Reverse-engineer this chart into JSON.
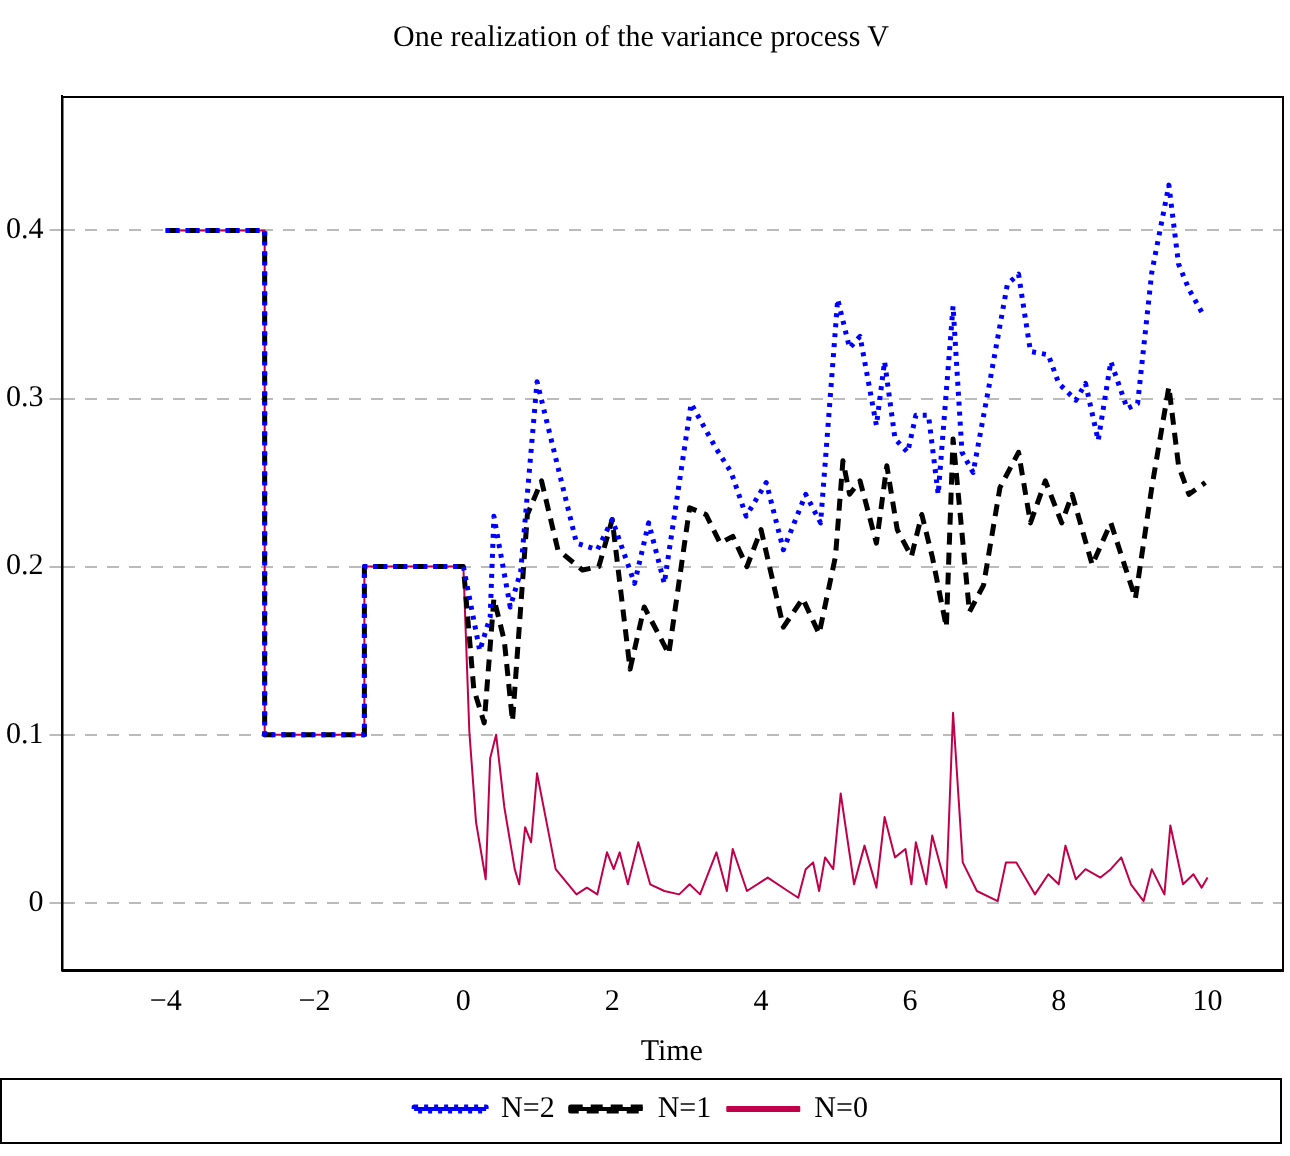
{
  "chart_data": {
    "type": "line",
    "title": "One realization of the variance process V",
    "xlabel": "Time",
    "xlim": [
      -5.4,
      11
    ],
    "xticks": [
      -4,
      -2,
      0,
      2,
      4,
      6,
      8,
      10
    ],
    "ylim": [
      -0.04,
      0.48
    ],
    "yticks": [
      0,
      0.1,
      0.2,
      0.3,
      0.4
    ],
    "grid": "y",
    "legend": "bottom",
    "marker": "none",
    "series": [
      {
        "name": "N=2",
        "color": "#0000ff",
        "line_style": "dotted",
        "x": [
          -4,
          -2.67,
          -2.67,
          -1.33,
          -1.33,
          0,
          0.22,
          0.36,
          0.41,
          0.63,
          0.77,
          0.99,
          1.52,
          1.8,
          2.0,
          2.3,
          2.49,
          2.7,
          3.06,
          3.4,
          3.6,
          3.8,
          4.07,
          4.3,
          4.6,
          4.8,
          5.03,
          5.19,
          5.33,
          5.55,
          5.66,
          5.8,
          5.97,
          6.08,
          6.25,
          6.38,
          6.58,
          6.7,
          6.85,
          7.07,
          7.31,
          7.46,
          7.62,
          7.86,
          8.0,
          8.23,
          8.36,
          8.53,
          8.7,
          8.92,
          9.06,
          9.25,
          9.48,
          9.61,
          9.75,
          9.94
        ],
        "values": [
          0.4,
          0.4,
          0.1,
          0.1,
          0.2,
          0.2,
          0.15,
          0.17,
          0.23,
          0.176,
          0.197,
          0.31,
          0.214,
          0.21,
          0.228,
          0.19,
          0.226,
          0.19,
          0.297,
          0.27,
          0.256,
          0.23,
          0.25,
          0.21,
          0.243,
          0.226,
          0.359,
          0.33,
          0.337,
          0.284,
          0.322,
          0.276,
          0.268,
          0.29,
          0.29,
          0.243,
          0.355,
          0.268,
          0.256,
          0.309,
          0.368,
          0.374,
          0.328,
          0.326,
          0.309,
          0.299,
          0.309,
          0.275,
          0.322,
          0.294,
          0.297,
          0.375,
          0.427,
          0.38,
          0.365,
          0.35
        ]
      },
      {
        "name": "N=1",
        "color": "#000000",
        "line_style": "dashed",
        "x": [
          -4,
          -2.67,
          -2.67,
          -1.33,
          -1.33,
          0,
          0.14,
          0.28,
          0.41,
          0.55,
          0.66,
          0.86,
          1.05,
          1.27,
          1.6,
          1.82,
          2.0,
          2.24,
          2.43,
          2.62,
          2.76,
          3.04,
          3.26,
          3.45,
          3.62,
          3.81,
          4.0,
          4.3,
          4.56,
          4.78,
          5.0,
          5.1,
          5.19,
          5.33,
          5.55,
          5.69,
          5.83,
          6.02,
          6.16,
          6.3,
          6.49,
          6.58,
          6.8,
          6.99,
          7.21,
          7.46,
          7.62,
          7.82,
          8.04,
          8.18,
          8.45,
          8.7,
          9.03,
          9.25,
          9.48,
          9.61,
          9.75,
          9.97
        ],
        "values": [
          0.4,
          0.4,
          0.1,
          0.1,
          0.2,
          0.2,
          0.127,
          0.107,
          0.181,
          0.156,
          0.108,
          0.231,
          0.251,
          0.21,
          0.198,
          0.2,
          0.228,
          0.139,
          0.176,
          0.16,
          0.148,
          0.235,
          0.231,
          0.214,
          0.218,
          0.2,
          0.222,
          0.164,
          0.181,
          0.16,
          0.206,
          0.263,
          0.243,
          0.251,
          0.214,
          0.26,
          0.222,
          0.206,
          0.231,
          0.206,
          0.164,
          0.276,
          0.173,
          0.189,
          0.247,
          0.268,
          0.226,
          0.251,
          0.226,
          0.243,
          0.201,
          0.226,
          0.181,
          0.247,
          0.307,
          0.26,
          0.243,
          0.25
        ]
      },
      {
        "name": "N=0",
        "color": "#c0004a",
        "line_style": "solid",
        "x": [
          -4,
          -2.67,
          -2.67,
          -1.33,
          -1.33,
          0,
          0.08,
          0.17,
          0.3,
          0.36,
          0.44,
          0.55,
          0.69,
          0.75,
          0.83,
          0.91,
          0.99,
          1.1,
          1.24,
          1.52,
          1.66,
          1.8,
          1.93,
          2.02,
          2.1,
          2.21,
          2.35,
          2.51,
          2.7,
          2.9,
          3.04,
          3.18,
          3.4,
          3.54,
          3.62,
          3.81,
          4.09,
          4.36,
          4.5,
          4.6,
          4.7,
          4.78,
          4.86,
          4.97,
          5.07,
          5.25,
          5.39,
          5.55,
          5.66,
          5.8,
          5.94,
          6.02,
          6.08,
          6.22,
          6.3,
          6.49,
          6.58,
          6.71,
          6.9,
          7.18,
          7.29,
          7.43,
          7.68,
          7.86,
          8.0,
          8.09,
          8.23,
          8.36,
          8.56,
          8.7,
          8.84,
          8.97,
          9.14,
          9.25,
          9.42,
          9.5,
          9.67,
          9.81,
          9.92,
          10.0
        ],
        "values": [
          0.4,
          0.4,
          0.1,
          0.1,
          0.2,
          0.2,
          0.102,
          0.048,
          0.014,
          0.086,
          0.1,
          0.057,
          0.02,
          0.011,
          0.045,
          0.036,
          0.077,
          0.052,
          0.02,
          0.005,
          0.009,
          0.005,
          0.03,
          0.02,
          0.03,
          0.011,
          0.036,
          0.011,
          0.007,
          0.005,
          0.011,
          0.005,
          0.03,
          0.007,
          0.032,
          0.007,
          0.015,
          0.007,
          0.003,
          0.02,
          0.024,
          0.007,
          0.027,
          0.02,
          0.065,
          0.011,
          0.034,
          0.009,
          0.051,
          0.027,
          0.032,
          0.011,
          0.036,
          0.011,
          0.04,
          0.009,
          0.113,
          0.024,
          0.007,
          0.001,
          0.024,
          0.024,
          0.005,
          0.017,
          0.011,
          0.034,
          0.014,
          0.02,
          0.015,
          0.02,
          0.027,
          0.011,
          0.001,
          0.02,
          0.005,
          0.046,
          0.011,
          0.017,
          0.009,
          0.015
        ]
      }
    ]
  }
}
